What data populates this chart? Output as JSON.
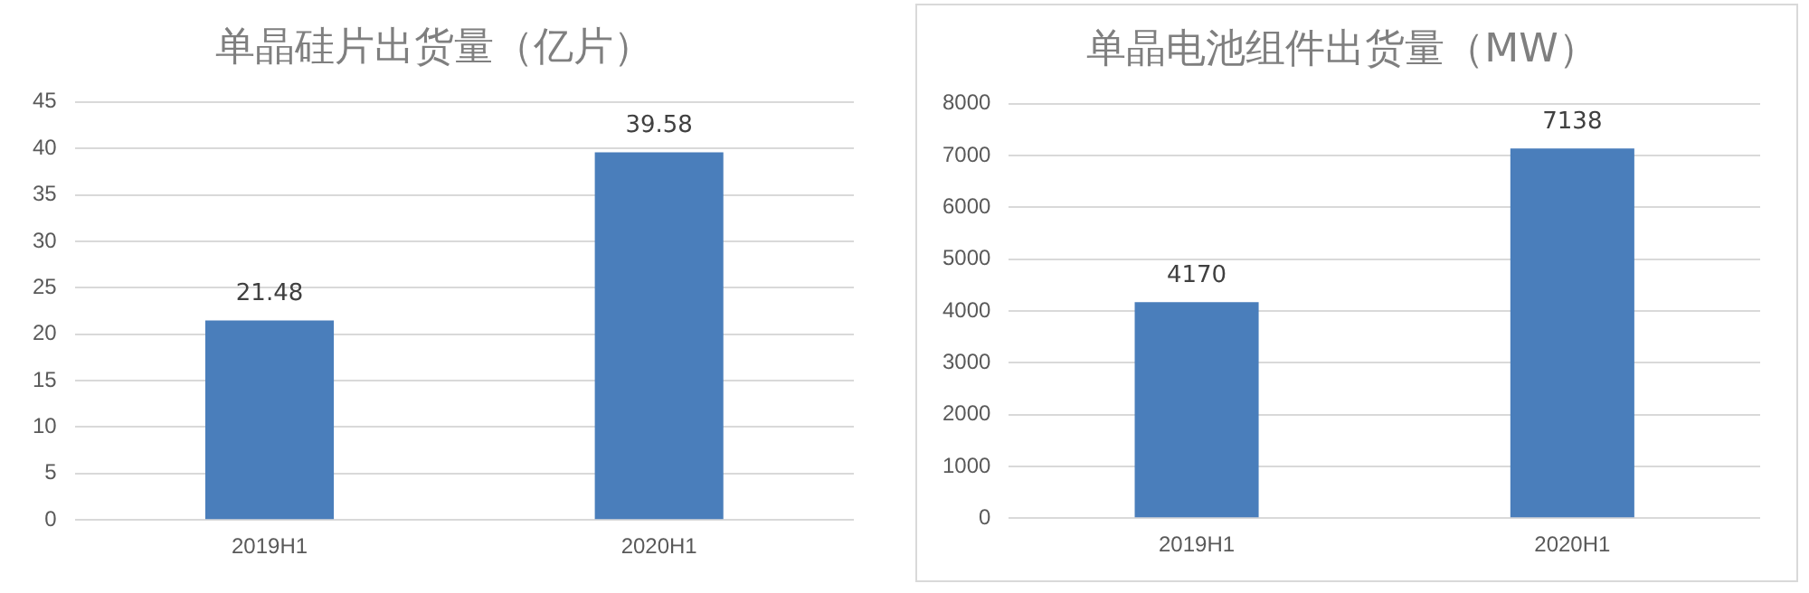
{
  "chart_data": [
    {
      "type": "bar",
      "title": "单晶硅片出货量（亿片）",
      "categories": [
        "2019H1",
        "2020H1"
      ],
      "values": [
        21.48,
        39.58
      ],
      "color": "#4a7ebb",
      "ylim": [
        0,
        45
      ],
      "yticks": [
        0,
        5,
        10,
        15,
        20,
        25,
        30,
        35,
        40,
        45
      ],
      "grid": "y",
      "data_labels": true
    },
    {
      "type": "bar",
      "title": "单晶电池组件出货量（MW）",
      "categories": [
        "2019H1",
        "2020H1"
      ],
      "values": [
        4170,
        7138
      ],
      "color": "#4a7ebb",
      "ylim": [
        0,
        8000
      ],
      "yticks": [
        0,
        1000,
        2000,
        3000,
        4000,
        5000,
        6000,
        7000,
        8000
      ],
      "grid": "y",
      "data_labels": true
    }
  ]
}
